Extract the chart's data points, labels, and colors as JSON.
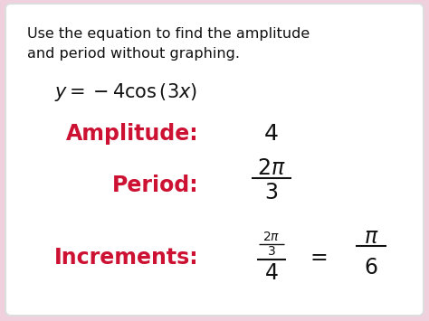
{
  "background_outer": "#f0d0dc",
  "background_inner": "#ffffff",
  "title_text1": "Use the equation to find the amplitude",
  "title_text2": "and period without graphing.",
  "title_color": "#111111",
  "amplitude_label": "Amplitude:",
  "period_label": "Period:",
  "increments_label": "Increments:",
  "label_color": "#cc1133",
  "amplitude_value": "4",
  "value_color": "#111111",
  "fig_width": 4.74,
  "fig_height": 3.55,
  "dpi": 100
}
